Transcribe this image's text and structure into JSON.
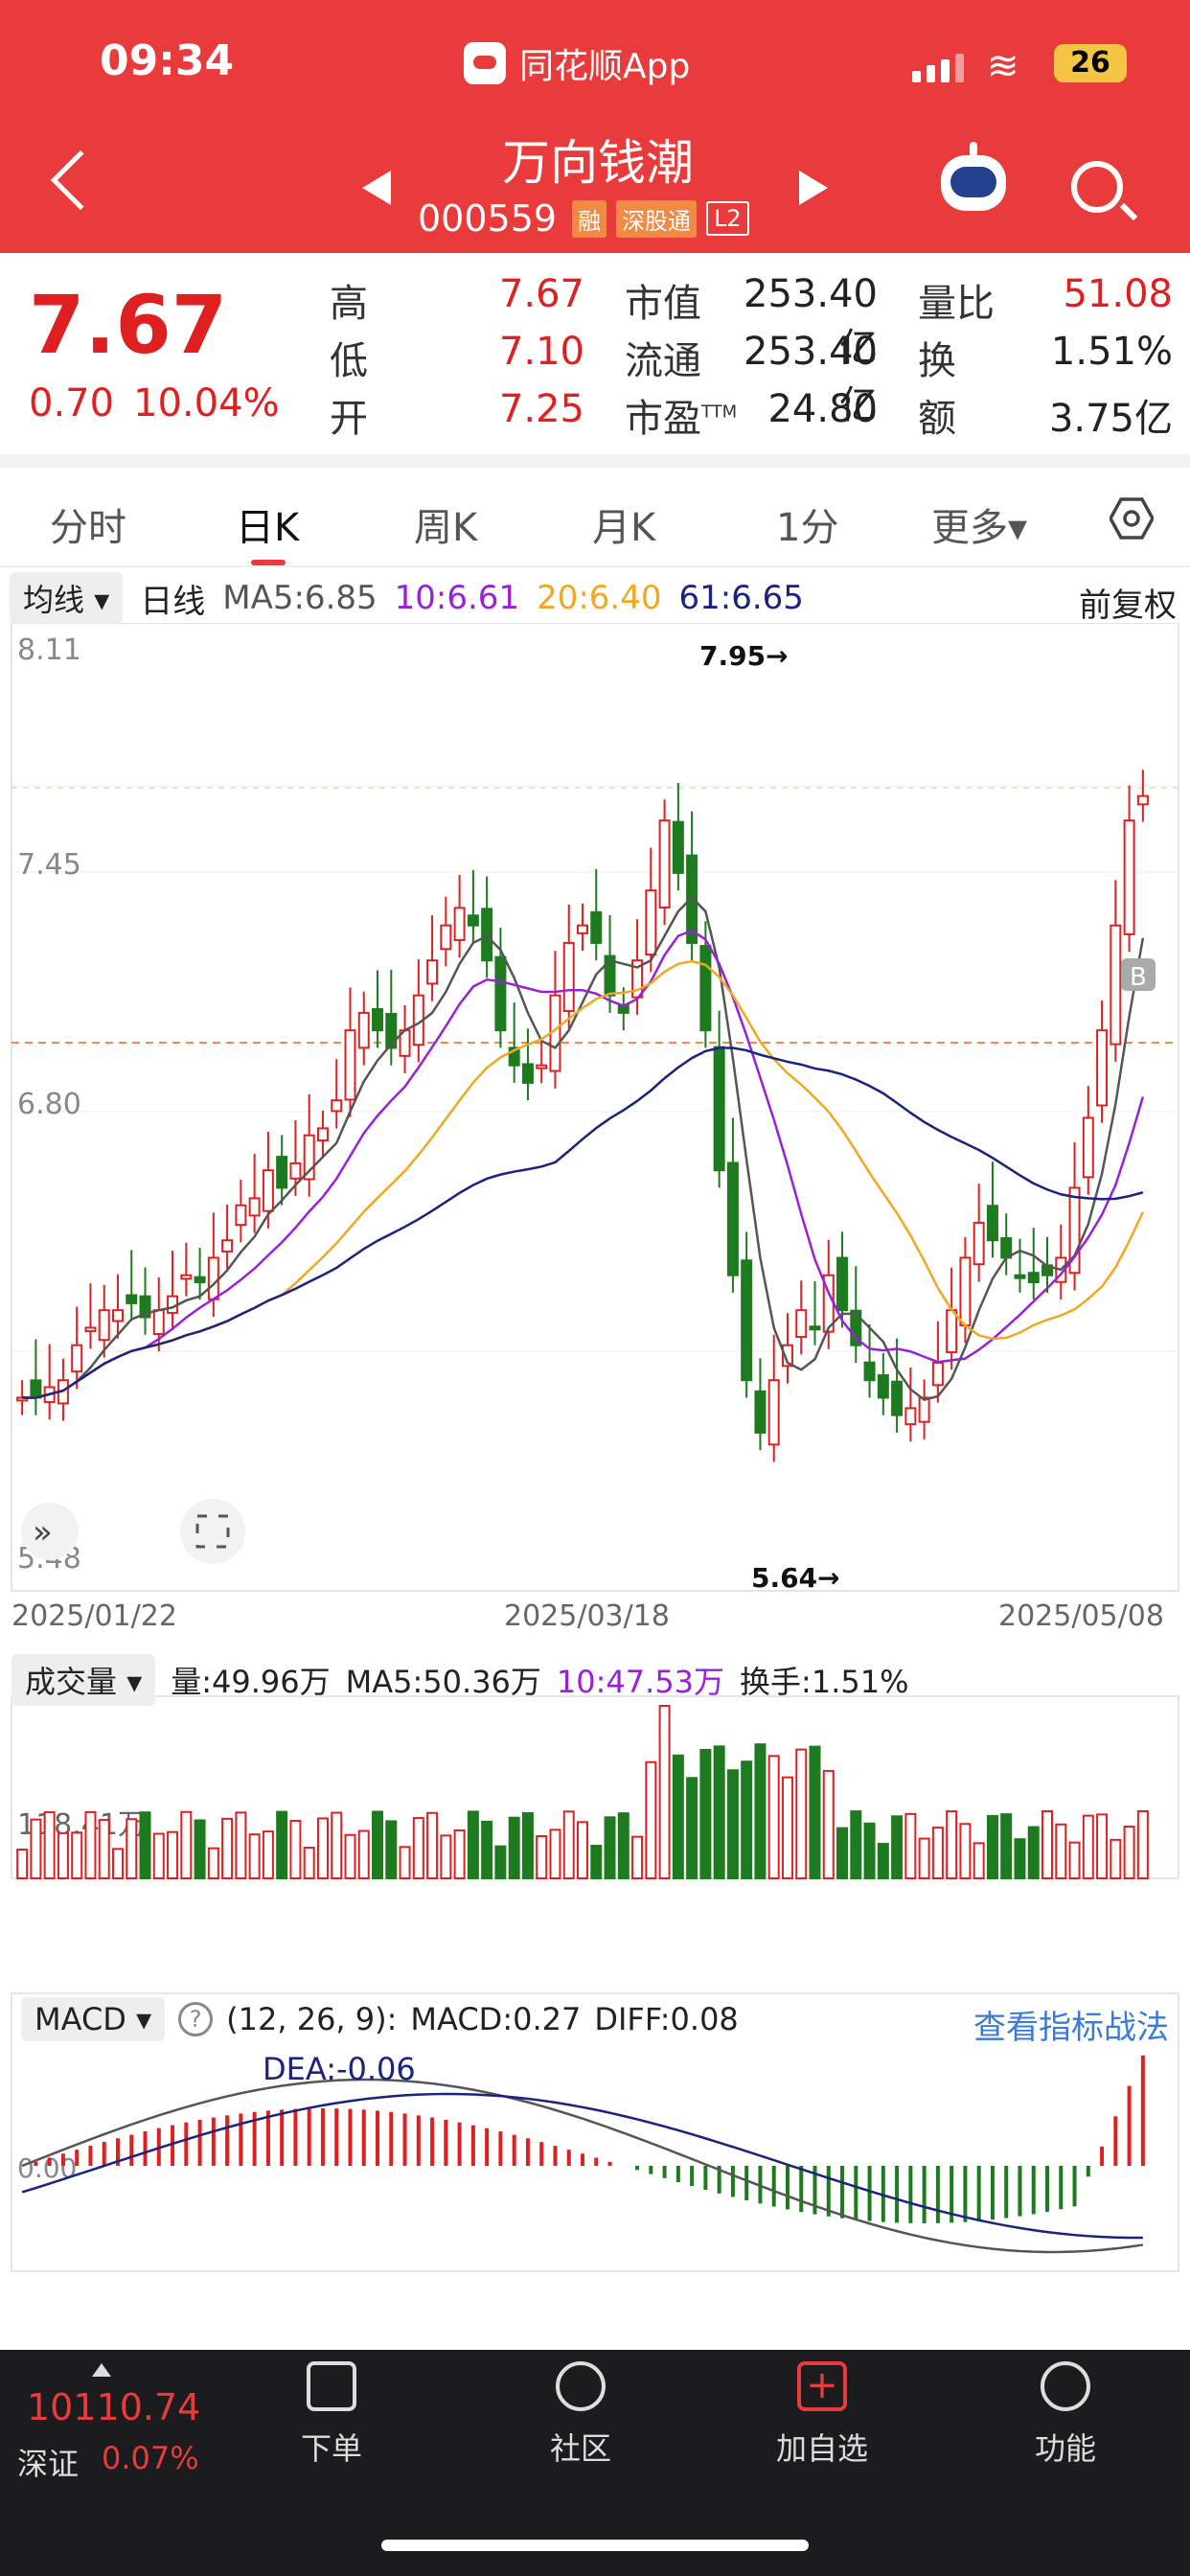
{
  "status": {
    "time": "09:34",
    "app": "同花顺App",
    "battery": "26"
  },
  "stock": {
    "name": "万向钱潮",
    "code": "000559",
    "tags": [
      "融",
      "深股通",
      "L2"
    ]
  },
  "quote": {
    "price": "7.67",
    "change": "0.70",
    "change_pct": "10.04%",
    "high_label": "高",
    "high": "7.67",
    "low_label": "低",
    "low": "7.10",
    "open_label": "开",
    "open": "7.25",
    "mcap_label": "市值",
    "mcap": "253.40亿",
    "float_label": "流通",
    "float": "253.40亿",
    "pe_label": "市盈",
    "pe_sup": "TTM",
    "pe": "24.80",
    "vr_label": "量比",
    "vr": "51.08",
    "turn_label": "换",
    "turn": "1.51%",
    "amt_label": "额",
    "amt": "3.75亿"
  },
  "tabs": [
    "分时",
    "日K",
    "周K",
    "月K",
    "1分",
    "更多▾"
  ],
  "kline": {
    "selector": "均线",
    "period": "日线",
    "ma5": "MA5:6.85",
    "ma10": "10:6.61",
    "ma20": "20:6.40",
    "ma61": "61:6.65",
    "adjust": "前复权",
    "y_top": "8.11",
    "y_mid1": "7.45",
    "y_mid2": "6.80",
    "y_bottom": "5.48",
    "max_label": "7.95→",
    "min_label": "5.64→",
    "dates": [
      "2025/01/22",
      "2025/03/18",
      "2025/05/08"
    ],
    "marker": "B"
  },
  "volume": {
    "selector": "成交量",
    "vol": "量:49.96万",
    "ma5": "MA5:50.36万",
    "ma10": "10:47.53万",
    "turnover": "换手:1.51%",
    "y_label": "118.41万"
  },
  "macd": {
    "selector": "MACD",
    "help": "?",
    "params": "(12, 26, 9):",
    "macd": "MACD:0.27",
    "diff": "DIFF:0.08",
    "dea": "DEA:-0.06",
    "zero": "0.00",
    "link": "查看指标战法"
  },
  "index": {
    "value": "10110.74",
    "name": "深证",
    "pct": "0.07%"
  },
  "nav": [
    "下单",
    "社区",
    "加自选",
    "功能"
  ],
  "colors": {
    "up": "#e02020",
    "down": "#1e7a1e",
    "ma5": "#555555",
    "ma10": "#9a20d8",
    "ma20": "#f0a820",
    "ma61": "#1a237e"
  }
}
